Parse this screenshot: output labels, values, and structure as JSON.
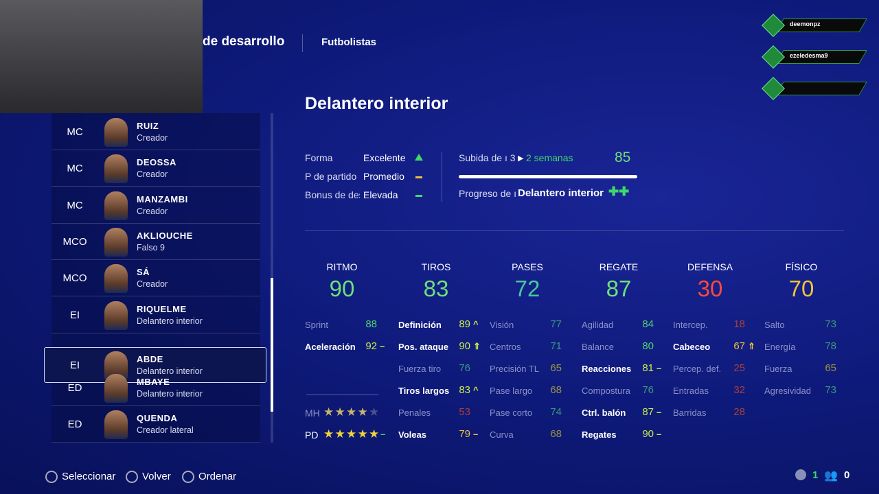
{
  "header": {
    "section": "de desarrollo",
    "tab": "Futbolistas"
  },
  "overlay": {
    "users": [
      "deemonpz",
      "ezeledesma9"
    ]
  },
  "players": [
    {
      "position": "MC",
      "name": "RUIZ",
      "role": "Creador"
    },
    {
      "position": "MC",
      "name": "DEOSSA",
      "role": "Creador"
    },
    {
      "position": "MC",
      "name": "MANZAMBI",
      "role": "Creador"
    },
    {
      "position": "MCO",
      "name": "AKLIOUCHE",
      "role": "Falso 9"
    },
    {
      "position": "MCO",
      "name": "SÁ",
      "role": "Creador"
    },
    {
      "position": "EI",
      "name": "RIQUELME",
      "role": "Delantero interior"
    },
    {
      "position": "EI",
      "name": "ABDE",
      "role": "Delantero interior",
      "selected": true
    },
    {
      "position": "ED",
      "name": "MBAYE",
      "role": "Delantero interior"
    },
    {
      "position": "ED",
      "name": "QUENDA",
      "role": "Creador lateral"
    }
  ],
  "title": "Delantero interior",
  "status": [
    {
      "label": "Forma",
      "value": "Excelente",
      "indicator": "up",
      "color": "#3fd86a"
    },
    {
      "label": "P de partido",
      "value": "Promedio",
      "indicator": "flat",
      "color": "#f0c23a"
    },
    {
      "label": "Bonus de des",
      "value": "Elevada",
      "indicator": "flat",
      "color": "#3fd86a"
    }
  ],
  "upgrade": {
    "label": "Subida de ı 3",
    "time": "2 semanas",
    "value": 85,
    "progress_label": "Progreso de ı",
    "progress_target": "Delantero interior"
  },
  "stats": [
    {
      "name": "RITMO",
      "value": 90,
      "color": "#6ee07a",
      "attributes": [
        {
          "name": "Sprint",
          "value": 88
        },
        {
          "name": "Aceleración",
          "value": 92,
          "highlight": true,
          "trend": "flat"
        }
      ]
    },
    {
      "name": "TIROS",
      "value": 83,
      "color": "#6ee07a",
      "attributes": [
        {
          "name": "Definición",
          "value": 89,
          "highlight": true,
          "trend": "up"
        },
        {
          "name": "Pos. ataque",
          "value": 90,
          "highlight": true,
          "trend": "double"
        },
        {
          "name": "Fuerza tiro",
          "value": 76
        },
        {
          "name": "Tiros largos",
          "value": 83,
          "highlight": true,
          "trend": "up"
        },
        {
          "name": "Penales",
          "value": 53
        },
        {
          "name": "Voleas",
          "value": 79,
          "highlight": true,
          "trend": "flat"
        }
      ]
    },
    {
      "name": "PASES",
      "value": 72,
      "color": "#46c99a",
      "attributes": [
        {
          "name": "Visión",
          "value": 77
        },
        {
          "name": "Centros",
          "value": 71
        },
        {
          "name": "Precisión TL",
          "value": 65
        },
        {
          "name": "Pase largo",
          "value": 68
        },
        {
          "name": "Pase corto",
          "value": 74
        },
        {
          "name": "Curva",
          "value": 68
        }
      ]
    },
    {
      "name": "REGATE",
      "value": 87,
      "color": "#6ee07a",
      "attributes": [
        {
          "name": "Agilidad",
          "value": 84
        },
        {
          "name": "Balance",
          "value": 80
        },
        {
          "name": "Reacciones",
          "value": 81,
          "highlight": true,
          "trend": "flat"
        },
        {
          "name": "Compostura",
          "value": 76
        },
        {
          "name": "Ctrl. balón",
          "value": 87,
          "highlight": true,
          "trend": "flat"
        },
        {
          "name": "Regates",
          "value": 90,
          "highlight": true,
          "trend": "flat"
        }
      ]
    },
    {
      "name": "DEFENSA",
      "value": 30,
      "color": "#ff4a3a",
      "attributes": [
        {
          "name": "Intercep.",
          "value": 18
        },
        {
          "name": "Cabeceo",
          "value": 67,
          "highlight": true,
          "trend": "double"
        },
        {
          "name": "Percep. def.",
          "value": 25
        },
        {
          "name": "Entradas",
          "value": 32
        },
        {
          "name": "Barridas",
          "value": 28
        }
      ]
    },
    {
      "name": "FÍSICO",
      "value": 70,
      "color": "#f0c23a",
      "attributes": [
        {
          "name": "Salto",
          "value": 73
        },
        {
          "name": "Energía",
          "value": 78
        },
        {
          "name": "Fuerza",
          "value": 65
        },
        {
          "name": "Agresividad",
          "value": 73
        }
      ]
    }
  ],
  "skills": [
    {
      "label": "MH",
      "stars": 4
    },
    {
      "label": "PD",
      "stars": 5,
      "trend": "flat"
    }
  ],
  "footer": {
    "actions": [
      "Seleccionar",
      "Volver",
      "Ordenar"
    ],
    "counts": [
      1,
      0
    ]
  }
}
